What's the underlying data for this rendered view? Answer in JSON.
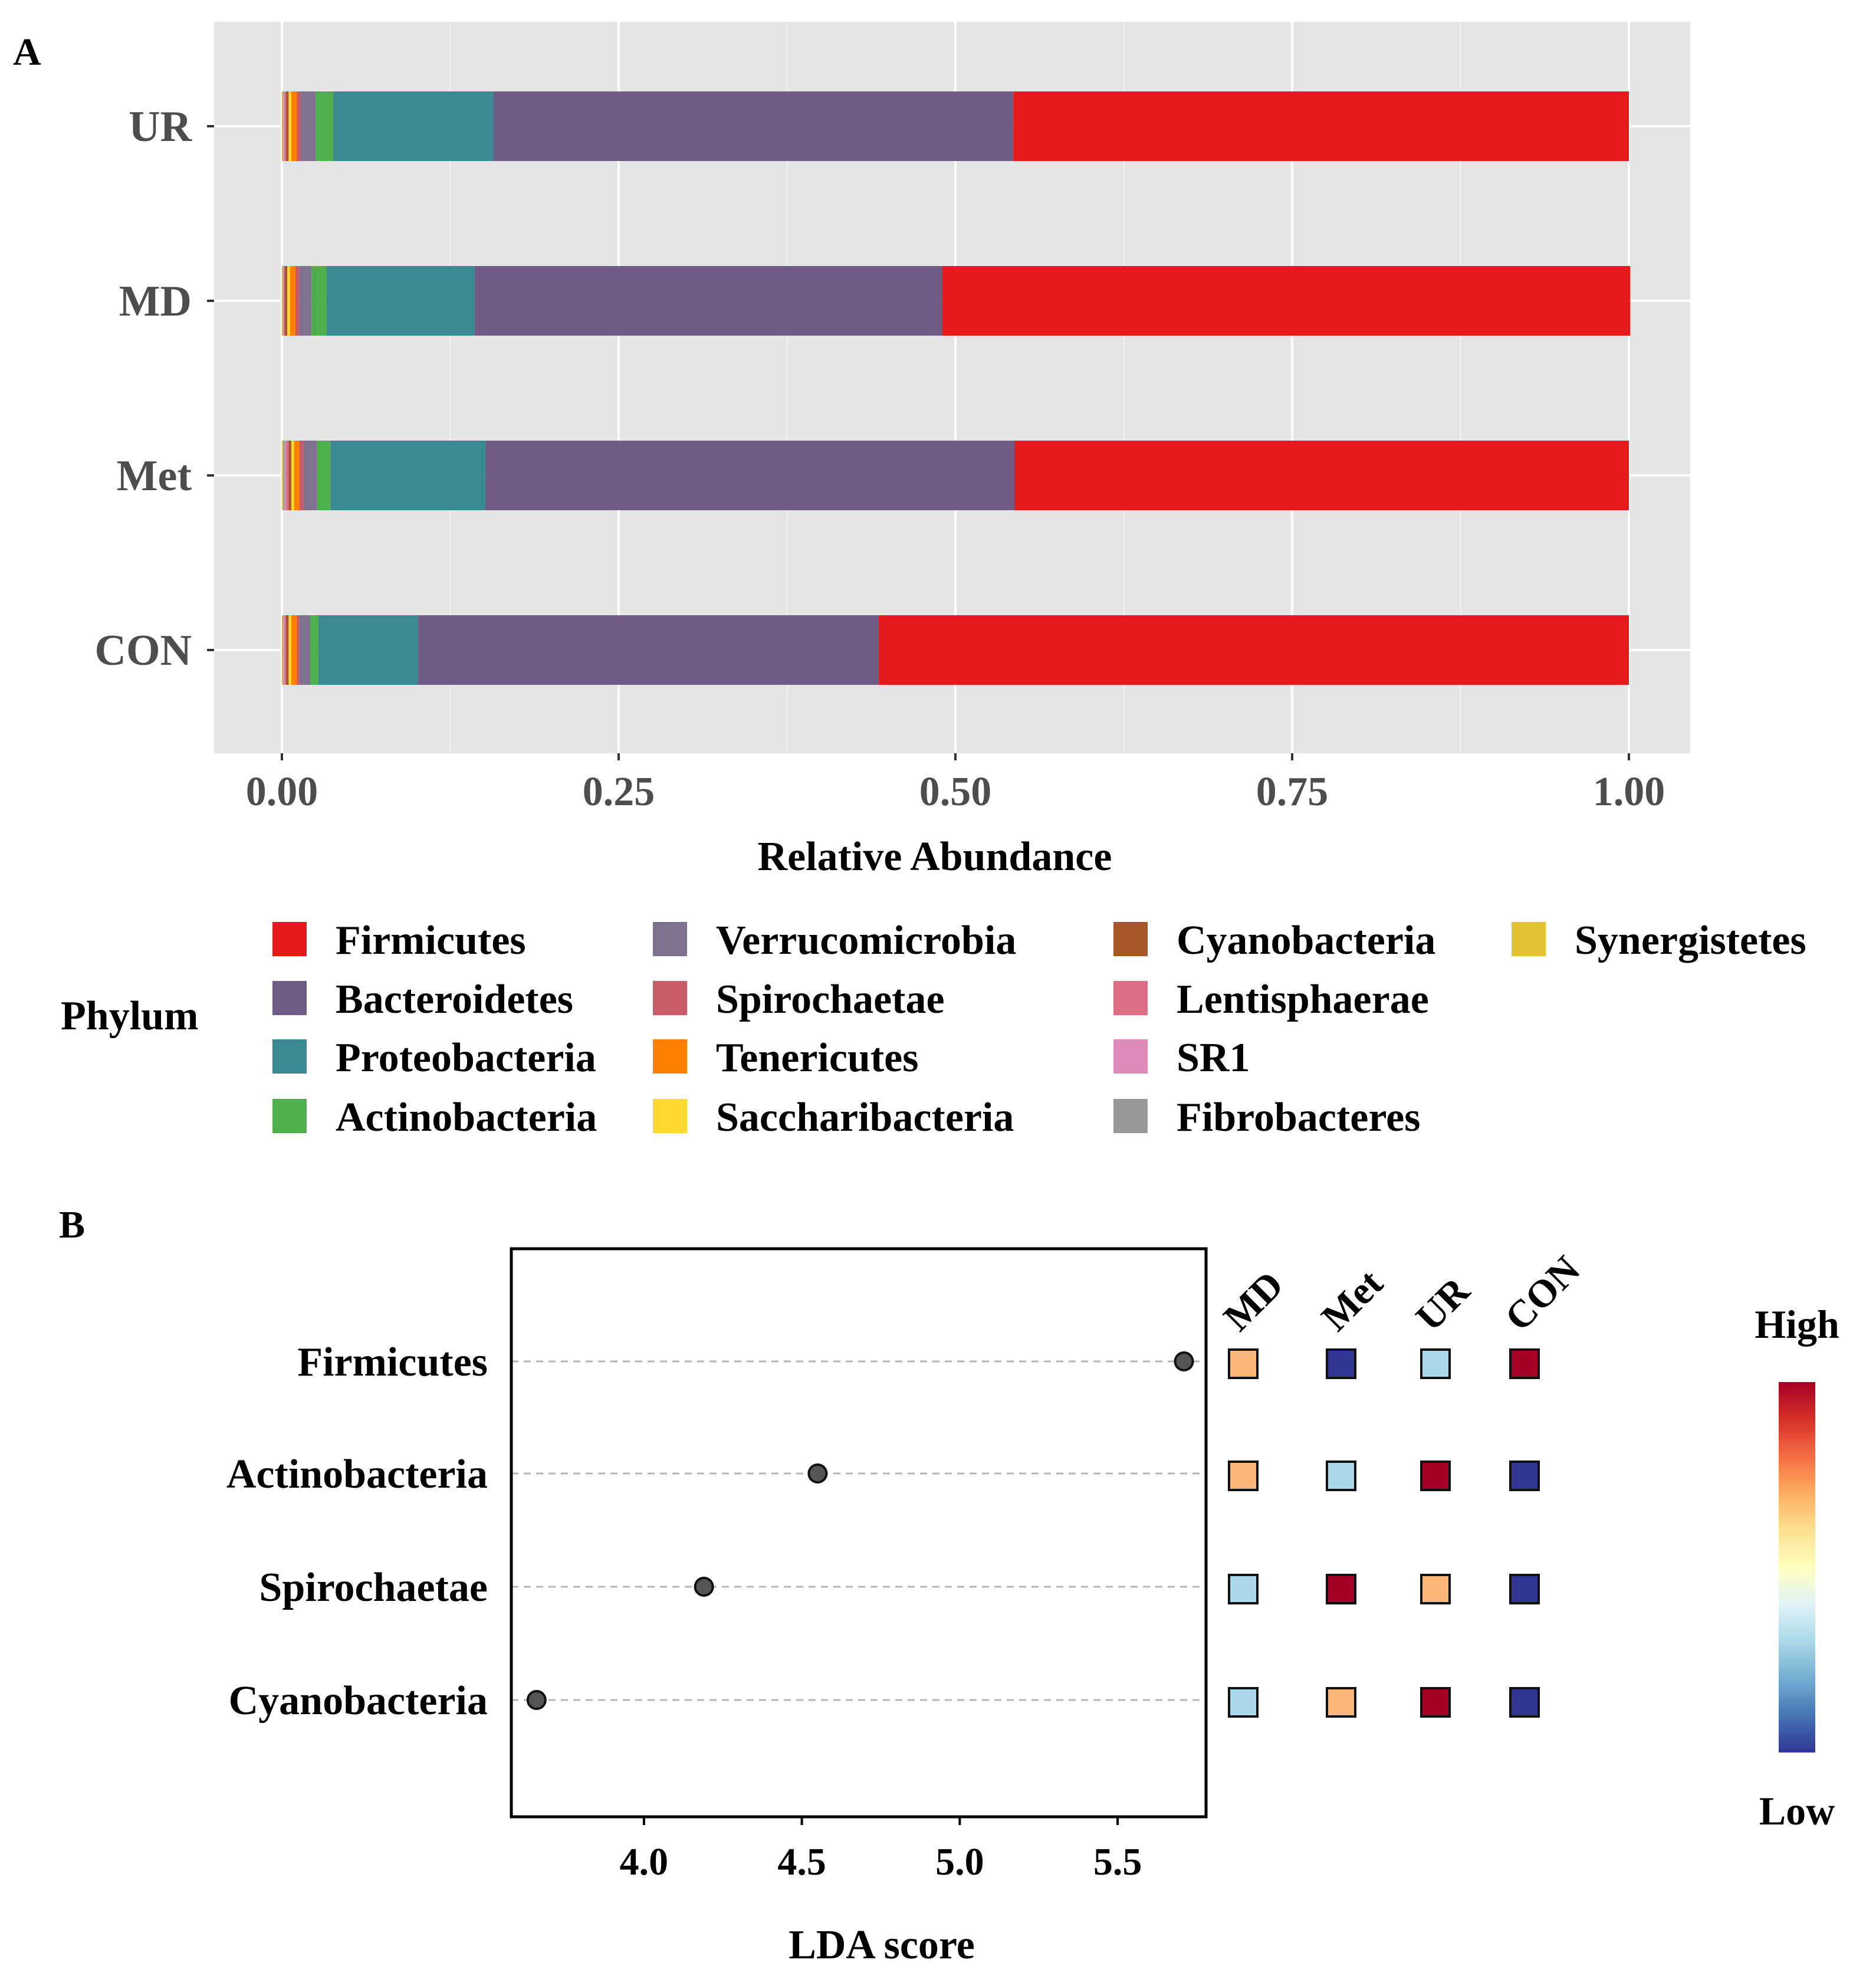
{
  "panel_a_label": "A",
  "panel_b_label": "B",
  "legend_title": "Phylum",
  "chart_data": [
    {
      "type": "bar",
      "orientation": "horizontal",
      "stacked": true,
      "categories": [
        "UR",
        "MD",
        "Met",
        "CON"
      ],
      "xlabel": "Relative Abundance",
      "ylabel": "",
      "xlim": [
        0,
        1
      ],
      "xticks": [
        "0.00",
        "0.25",
        "0.50",
        "0.75",
        "1.00"
      ],
      "grid": true,
      "legend_title": "Phylum",
      "legend_position": "bottom",
      "series": [
        {
          "name": "Firmicutes",
          "color": "#E41A1C",
          "values": [
            0.457,
            0.511,
            0.456,
            0.557
          ]
        },
        {
          "name": "Bacteroidetes",
          "color": "#6F5B83",
          "values": [
            0.386,
            0.347,
            0.393,
            0.342
          ]
        },
        {
          "name": "Proteobacteria",
          "color": "#3A8A91",
          "values": [
            0.119,
            0.11,
            0.115,
            0.074
          ]
        },
        {
          "name": "Actinobacteria",
          "color": "#4DAF4A",
          "values": [
            0.013,
            0.011,
            0.01,
            0.006
          ]
        },
        {
          "name": "Verrucomicrobia",
          "color": "#7E7290",
          "values": [
            0.011,
            0.009,
            0.01,
            0.008
          ]
        },
        {
          "name": "Spirochaetae",
          "color": "#C65B67",
          "values": [
            0.003,
            0.003,
            0.003,
            0.002
          ]
        },
        {
          "name": "Tenericutes",
          "color": "#FF7F00",
          "values": [
            0.004,
            0.004,
            0.004,
            0.004
          ]
        },
        {
          "name": "Saccharibacteria",
          "color": "#FFD92F",
          "values": [
            0.002,
            0.002,
            0.002,
            0.002
          ]
        },
        {
          "name": "Cyanobacteria",
          "color": "#A65628",
          "values": [
            0.002,
            0.002,
            0.002,
            0.002
          ]
        },
        {
          "name": "Lentisphaerae",
          "color": "#DD6E85",
          "values": [
            0.001,
            0.0005,
            0.002,
            0.001
          ]
        },
        {
          "name": "SR1",
          "color": "#DE8AB8",
          "values": [
            0.001,
            0.0005,
            0.001,
            0.001
          ]
        },
        {
          "name": "Fibrobacteres",
          "color": "#999999",
          "values": [
            0.0005,
            0.0005,
            0.001,
            0.0005
          ]
        },
        {
          "name": "Synergistetes",
          "color": "#E2C233",
          "values": [
            0.0005,
            0.0005,
            0.001,
            0.0005
          ]
        }
      ]
    },
    {
      "type": "scatter",
      "title": "",
      "xlabel": "LDA score",
      "ylabel": "",
      "xlim": [
        3.58,
        5.78
      ],
      "xticks": [
        "4.0",
        "4.5",
        "5.0",
        "5.5"
      ],
      "features": [
        "Firmicutes",
        "Actinobacteria",
        "Spirochaetae",
        "Cyanobacteria"
      ],
      "lda_scores": [
        5.71,
        4.55,
        4.19,
        3.66
      ],
      "groups": [
        "MD",
        "Met",
        "UR",
        "CON"
      ],
      "heatmap": [
        [
          "#FDB77A",
          "#313695",
          "#ABD9E9",
          "#A50026"
        ],
        [
          "#FDB77A",
          "#ABD9E9",
          "#A50026",
          "#313695"
        ],
        [
          "#ABD9E9",
          "#A50026",
          "#FDB77A",
          "#313695"
        ],
        [
          "#ABD9E9",
          "#FDB77A",
          "#A50026",
          "#313695"
        ]
      ],
      "color_scale": {
        "high_label": "High",
        "low_label": "Low",
        "colors": [
          "#A50026",
          "#D73027",
          "#F46D43",
          "#FDAE61",
          "#FEE090",
          "#FFFFBF",
          "#E0F3F8",
          "#ABD9E9",
          "#74ADD1",
          "#4575B4",
          "#313695"
        ]
      }
    }
  ]
}
